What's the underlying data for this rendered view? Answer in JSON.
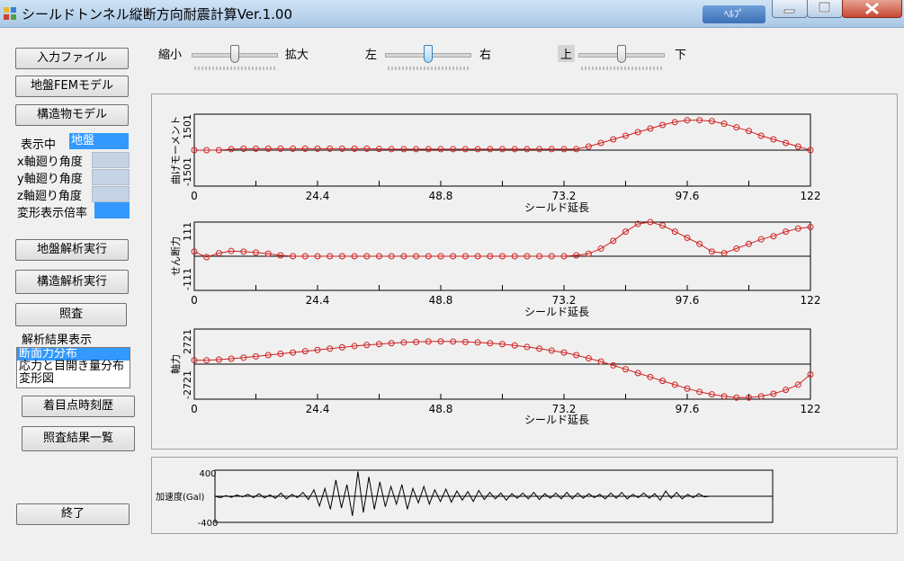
{
  "window": {
    "title": "シールドトンネル縦断方向耐震計算Ver.1.00",
    "help_label": "ﾍﾙﾌﾟ"
  },
  "left_panel": {
    "buttons": {
      "input_file": "入力ファイル",
      "ground_fem": "地盤FEMモデル",
      "structure_model": "構造物モデル",
      "ground_analysis": "地盤解析実行",
      "structure_analysis": "構造解析実行",
      "check": "照査",
      "time_history": "着目点時刻歴",
      "check_list": "照査結果一覧",
      "exit": "終了"
    },
    "display_label": "表示中",
    "display_value": "地盤",
    "x_rotation_label": "x軸廻り角度",
    "y_rotation_label": "y軸廻り角度",
    "z_rotation_label": "z軸廻り角度",
    "deform_scale_label": "変形表示倍率",
    "results_label": "解析結果表示",
    "results_options": [
      "断面力分布",
      "応力と目開き量分布",
      "変形図"
    ],
    "results_selected_index": 0
  },
  "sliders": {
    "zoom": {
      "min_label": "縮小",
      "max_label": "拡大",
      "position": 0.5
    },
    "horizontal": {
      "min_label": "左",
      "max_label": "右",
      "position": 0.5
    },
    "vertical": {
      "min_label": "上",
      "max_label": "下",
      "position": 0.5
    }
  },
  "chart_data": [
    {
      "type": "line",
      "ylabel": "曲げモーメント",
      "xlabel": "シールド延長",
      "xlim": [
        0,
        122
      ],
      "ylim": [
        -1501,
        1501
      ],
      "xticks": [
        "0",
        "24.4",
        "48.8",
        "73.2",
        "97.6",
        "122"
      ],
      "yticks": [
        "1501",
        "-1501"
      ],
      "series": [
        {
          "x": [
            0,
            2.44,
            4.88,
            7.32,
            9.76,
            12.2,
            14.64,
            17.08,
            19.52,
            21.96,
            24.4,
            26.84,
            29.28,
            31.72,
            34.16,
            36.6,
            39.04,
            41.48,
            43.92,
            46.36,
            48.8,
            51.24,
            53.68,
            56.12,
            58.56,
            61.0,
            63.44,
            65.88,
            68.32,
            70.76,
            73.2,
            75.64,
            78.08,
            80.52,
            82.96,
            85.4,
            87.84,
            90.28,
            92.72,
            95.16,
            97.6,
            100.04,
            102.48,
            104.92,
            107.36,
            109.8,
            112.24,
            114.68,
            117.12,
            119.56,
            122
          ],
          "y": [
            0,
            0,
            0,
            40,
            60,
            60,
            60,
            60,
            60,
            60,
            60,
            60,
            60,
            60,
            60,
            50,
            40,
            40,
            40,
            40,
            40,
            40,
            40,
            40,
            40,
            40,
            40,
            40,
            40,
            40,
            40,
            40,
            150,
            300,
            450,
            600,
            750,
            900,
            1050,
            1170,
            1250,
            1250,
            1210,
            1100,
            950,
            800,
            600,
            450,
            300,
            150,
            0
          ]
        }
      ]
    },
    {
      "type": "line",
      "ylabel": "せん断力",
      "xlabel": "シールド延長",
      "xlim": [
        0,
        122
      ],
      "ylim": [
        -111,
        111
      ],
      "xticks": [
        "0",
        "24.4",
        "48.8",
        "73.2",
        "97.6",
        "122"
      ],
      "yticks": [
        "111",
        "-111"
      ],
      "series": [
        {
          "x": [
            0,
            2.44,
            4.88,
            7.32,
            9.76,
            12.2,
            14.64,
            17.08,
            19.52,
            21.96,
            24.4,
            26.84,
            29.28,
            31.72,
            34.16,
            36.6,
            39.04,
            41.48,
            43.92,
            46.36,
            48.8,
            51.24,
            53.68,
            56.12,
            58.56,
            61.0,
            63.44,
            65.88,
            68.32,
            70.76,
            73.2,
            75.64,
            78.08,
            80.52,
            82.96,
            85.4,
            87.84,
            90.28,
            92.72,
            95.16,
            97.6,
            100.04,
            102.48,
            104.92,
            107.36,
            109.8,
            112.24,
            114.68,
            117.12,
            119.56,
            122
          ],
          "y": [
            15,
            -3,
            10,
            17,
            15,
            12,
            8,
            3,
            0,
            0,
            0,
            0,
            0,
            0,
            0,
            0,
            0,
            0,
            0,
            0,
            0,
            0,
            0,
            0,
            0,
            0,
            0,
            0,
            0,
            0,
            0,
            3,
            8,
            25,
            50,
            80,
            105,
            111,
            100,
            80,
            60,
            40,
            15,
            10,
            25,
            40,
            55,
            65,
            80,
            90,
            95
          ]
        }
      ]
    },
    {
      "type": "line",
      "ylabel": "軸力",
      "xlabel": "シールド延長",
      "xlim": [
        0,
        122
      ],
      "ylim": [
        -2721,
        2721
      ],
      "xticks": [
        "0",
        "24.4",
        "48.8",
        "73.2",
        "97.6",
        "122"
      ],
      "yticks": [
        "2721",
        "-2721"
      ],
      "series": [
        {
          "x": [
            0,
            2.44,
            4.88,
            7.32,
            9.76,
            12.2,
            14.64,
            17.08,
            19.52,
            21.96,
            24.4,
            26.84,
            29.28,
            31.72,
            34.16,
            36.6,
            39.04,
            41.48,
            43.92,
            46.36,
            48.8,
            51.24,
            53.68,
            56.12,
            58.56,
            61.0,
            63.44,
            65.88,
            68.32,
            70.76,
            73.2,
            75.64,
            78.08,
            80.52,
            82.96,
            85.4,
            87.84,
            90.28,
            92.72,
            95.16,
            97.6,
            100.04,
            102.48,
            104.92,
            107.36,
            109.8,
            112.24,
            114.68,
            117.12,
            119.56,
            122
          ],
          "y": [
            300,
            300,
            350,
            420,
            500,
            600,
            700,
            800,
            900,
            1000,
            1100,
            1200,
            1300,
            1400,
            1480,
            1550,
            1620,
            1680,
            1720,
            1750,
            1760,
            1750,
            1720,
            1680,
            1620,
            1550,
            1450,
            1330,
            1200,
            1050,
            900,
            700,
            450,
            200,
            -100,
            -400,
            -700,
            -1000,
            -1300,
            -1600,
            -1900,
            -2150,
            -2350,
            -2500,
            -2600,
            -2600,
            -2500,
            -2300,
            -2000,
            -1600,
            -800
          ]
        }
      ]
    },
    {
      "type": "line",
      "ylabel": "加速度(Gal)",
      "xlabel": "",
      "ylim": [
        -400,
        400
      ],
      "yticks": [
        "400",
        "-400"
      ],
      "series": [
        {
          "x": [
            0,
            1,
            2,
            3,
            4,
            5,
            6,
            7,
            8,
            9,
            10,
            11,
            12,
            13,
            14,
            15,
            16,
            17,
            18,
            19,
            20,
            21,
            22,
            23,
            24,
            25,
            26,
            27,
            28,
            29,
            30,
            31,
            32,
            33,
            34,
            35,
            36,
            37,
            38,
            39,
            40,
            41,
            42,
            43,
            44,
            45,
            46,
            47,
            48,
            49,
            50,
            51,
            52,
            53,
            54,
            55,
            56,
            57,
            58,
            59,
            60,
            61,
            62,
            63,
            64,
            65,
            66,
            67,
            68,
            69,
            70,
            71,
            72,
            73,
            74,
            75,
            76,
            77,
            78,
            79,
            80,
            81,
            82,
            83,
            84,
            85,
            86,
            87,
            88,
            89,
            90
          ],
          "y": [
            0,
            -20,
            10,
            -15,
            20,
            -10,
            30,
            -20,
            40,
            -25,
            20,
            -30,
            50,
            -40,
            30,
            -20,
            60,
            -50,
            100,
            -150,
            120,
            -200,
            250,
            -180,
            180,
            -300,
            380,
            -250,
            300,
            -200,
            220,
            -160,
            150,
            -120,
            180,
            -200,
            120,
            -100,
            150,
            -120,
            100,
            -80,
            110,
            -90,
            80,
            -60,
            70,
            -80,
            90,
            -50,
            60,
            -40,
            50,
            -60,
            40,
            -30,
            50,
            -40,
            60,
            -50,
            40,
            -30,
            50,
            -40,
            60,
            -40,
            50,
            -30,
            40,
            -20,
            30,
            -40,
            50,
            -30,
            60,
            -40,
            30,
            -20,
            50,
            -30,
            40,
            -60,
            80,
            -30,
            60,
            -40,
            30,
            -20,
            40,
            -10,
            0
          ]
        }
      ]
    }
  ]
}
